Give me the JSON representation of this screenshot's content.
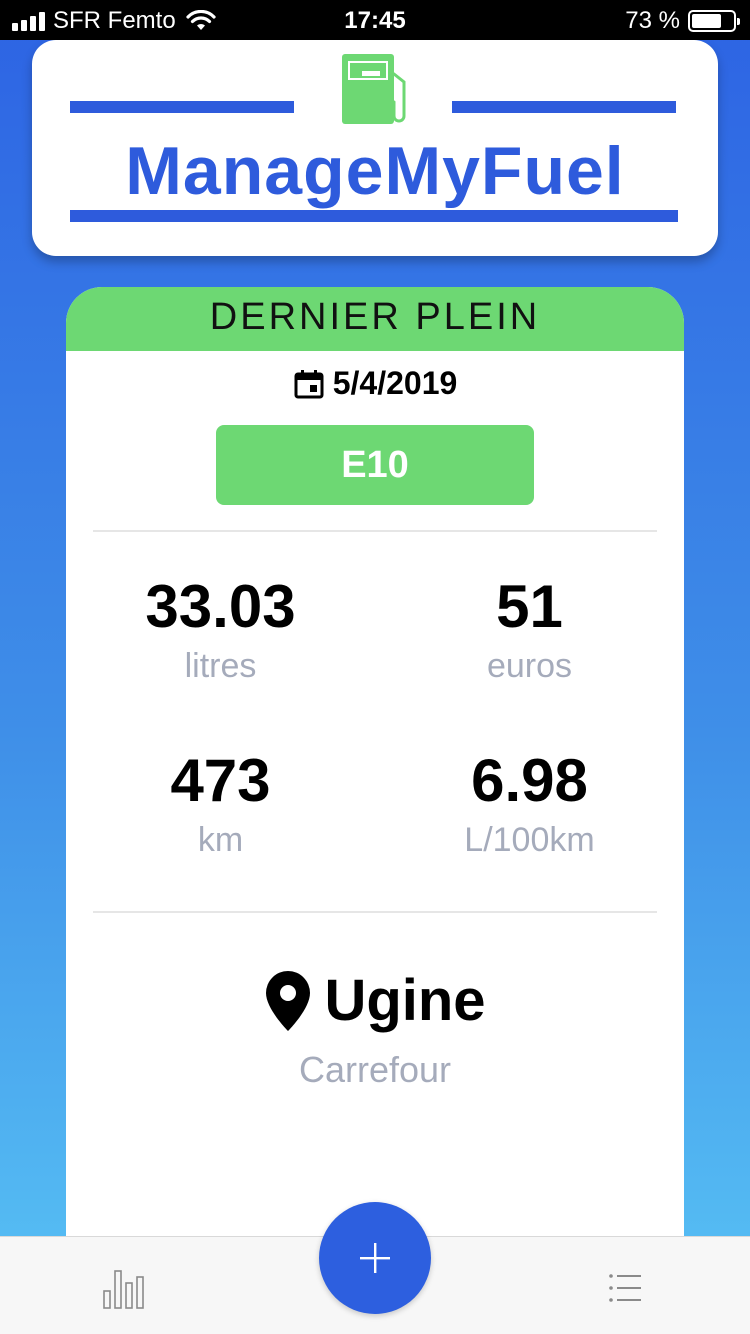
{
  "status_bar": {
    "carrier": "SFR Femto",
    "time": "17:45",
    "battery_text": "73 %",
    "battery_level": 0.73
  },
  "logo": {
    "text": "ManageMyFuel",
    "icon": "fuel-pump-icon",
    "brand_color": "#2e5bdc",
    "pump_color": "#6dd873"
  },
  "card": {
    "header": "DERNIER PLEIN",
    "date": "5/4/2019",
    "date_icon": "calendar-icon",
    "fuel_type": "E10",
    "accent_color": "#6dd873",
    "stats": [
      {
        "value": "33.03",
        "unit": "litres"
      },
      {
        "value": "51",
        "unit": "euros"
      },
      {
        "value": "473",
        "unit": "km"
      },
      {
        "value": "6.98",
        "unit": "L/100km"
      }
    ],
    "location": {
      "city": "Ugine",
      "station": "Carrefour",
      "icon": "map-pin-icon"
    }
  },
  "tab_bar": {
    "left_icon": "bar-chart-icon",
    "center_icon": "plus-icon",
    "right_icon": "list-icon",
    "fab_color": "#2d5fdf"
  }
}
